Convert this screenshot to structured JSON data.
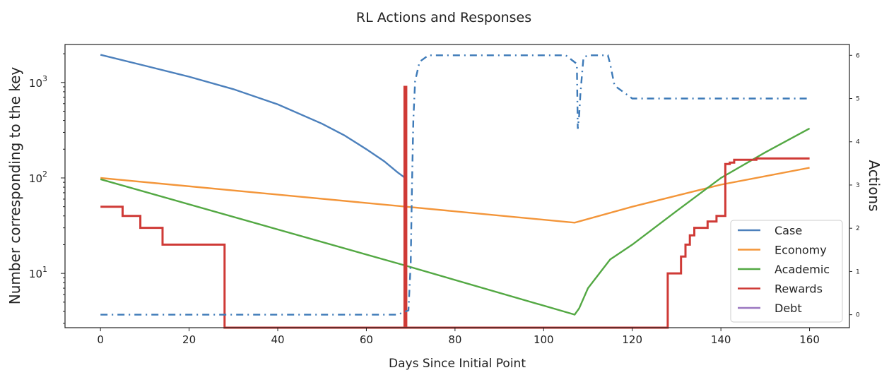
{
  "chart_data": {
    "type": "line",
    "title": "RL Actions and Responses",
    "xlabel": "Days Since Initial Point",
    "ylabel": "Number corresponding to the key",
    "y2label": "Actions",
    "xlim": [
      -8,
      169
    ],
    "ylim": [
      2.7,
      2500
    ],
    "yscale": "log",
    "y2lim": [
      -0.3,
      6.25
    ],
    "x_ticks": [
      0,
      20,
      40,
      60,
      80,
      100,
      120,
      140,
      160
    ],
    "y_ticks": [
      {
        "value": 10,
        "base": "10",
        "exp": "1"
      },
      {
        "value": 100,
        "base": "10",
        "exp": "2"
      },
      {
        "value": 1000,
        "base": "10",
        "exp": "3"
      }
    ],
    "y2_ticks": [
      0,
      1,
      2,
      3,
      4,
      5,
      6
    ],
    "legend_position": "lower-right",
    "legend": [
      "Case",
      "Economy",
      "Academic",
      "Rewards",
      "Debt"
    ],
    "colors": {
      "Case": "#4c80bc",
      "Economy": "#f39539",
      "Academic": "#53a843",
      "Rewards": "#cf3a36",
      "Debt": "#9a77c0",
      "Actions": "#3d7ab8"
    },
    "series": [
      {
        "name": "Case",
        "x": [
          0,
          10,
          20,
          30,
          40,
          50,
          55,
          60,
          64,
          67,
          69
        ],
        "y": [
          1950,
          1500,
          1150,
          850,
          590,
          370,
          280,
          200,
          150,
          115,
          98
        ]
      },
      {
        "name": "Economy",
        "x": [
          0,
          69,
          107,
          120,
          140,
          160
        ],
        "y": [
          100,
          50,
          34,
          50,
          85,
          128
        ]
      },
      {
        "name": "Academic",
        "x": [
          0,
          69,
          107,
          108,
          110,
          115,
          120,
          130,
          140,
          150,
          160
        ],
        "y": [
          97,
          12,
          3.7,
          4.3,
          7,
          14,
          20,
          45,
          100,
          185,
          330
        ]
      },
      {
        "name": "Rewards",
        "x": [
          0,
          5,
          5,
          7,
          7,
          9,
          9,
          14,
          14,
          28,
          28,
          68.6,
          68.6,
          69,
          69,
          128,
          128,
          131,
          131,
          132,
          132,
          133,
          133,
          134,
          134,
          137,
          137,
          139,
          139,
          141,
          141,
          142,
          142,
          143,
          143,
          148,
          148,
          160
        ],
        "y": [
          50,
          50,
          40,
          40,
          40,
          40,
          30,
          30,
          20,
          20,
          2.5,
          2.5,
          900,
          900,
          2.5,
          2.5,
          10,
          10,
          15,
          15,
          20,
          20,
          25,
          25,
          30,
          30,
          35,
          35,
          40,
          40,
          140,
          140,
          145,
          145,
          155,
          155,
          160,
          160
        ]
      },
      {
        "name": "Debt",
        "x": [],
        "y": []
      }
    ],
    "actions": {
      "name": "Actions",
      "x": [
        0,
        1,
        2,
        5,
        10,
        15,
        20,
        25,
        28,
        29,
        30,
        35,
        40,
        45,
        46,
        47,
        50,
        55,
        60,
        62,
        65,
        67,
        69.5,
        70,
        70.3,
        70.6,
        71,
        72,
        74,
        76,
        78,
        80,
        85,
        90,
        93,
        95,
        100,
        105,
        107.5,
        107.7,
        108,
        108.3,
        108.7,
        109,
        110,
        111,
        112,
        113,
        114.5,
        115,
        116,
        120,
        125,
        130,
        135,
        140,
        145,
        150,
        155,
        160
      ],
      "y": [
        0,
        0,
        0,
        0,
        0,
        0,
        0,
        0,
        0,
        0,
        0,
        0,
        0,
        0,
        0,
        0,
        0,
        0,
        0,
        0,
        0,
        0,
        0.1,
        1.2,
        3,
        4.5,
        5.4,
        5.85,
        6,
        6,
        6,
        6,
        6,
        6,
        6,
        6,
        6,
        6,
        5.8,
        4.3,
        4.6,
        5.1,
        5.6,
        5.95,
        6,
        6,
        6,
        6,
        6,
        5.8,
        5.3,
        5,
        5,
        5,
        5,
        5,
        5,
        5,
        5,
        5
      ]
    }
  }
}
